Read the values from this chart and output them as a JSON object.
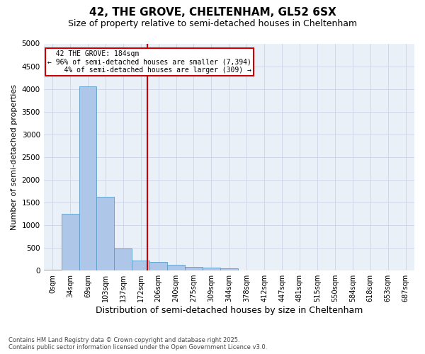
{
  "title1": "42, THE GROVE, CHELTENHAM, GL52 6SX",
  "title2": "Size of property relative to semi-detached houses in Cheltenham",
  "xlabel": "Distribution of semi-detached houses by size in Cheltenham",
  "ylabel": "Number of semi-detached properties",
  "bin_labels": [
    "0sqm",
    "34sqm",
    "69sqm",
    "103sqm",
    "137sqm",
    "172sqm",
    "206sqm",
    "240sqm",
    "275sqm",
    "309sqm",
    "344sqm",
    "378sqm",
    "412sqm",
    "447sqm",
    "481sqm",
    "515sqm",
    "550sqm",
    "584sqm",
    "618sqm",
    "653sqm",
    "687sqm"
  ],
  "bar_heights": [
    20,
    1250,
    4050,
    1620,
    480,
    220,
    190,
    130,
    80,
    70,
    50,
    5,
    0,
    0,
    0,
    0,
    0,
    0,
    0,
    0,
    0
  ],
  "bar_color": "#aec6e8",
  "bar_edge_color": "#5a9ec9",
  "marker_label": "42 THE GROVE: 184sqm",
  "pct_smaller": "96% of semi-detached houses are smaller (7,394)",
  "pct_larger": "4% of semi-detached houses are larger (309)",
  "ylim": [
    0,
    5000
  ],
  "yticks": [
    0,
    500,
    1000,
    1500,
    2000,
    2500,
    3000,
    3500,
    4000,
    4500,
    5000
  ],
  "annotation_box_color": "#cc0000",
  "grid_color": "#d0d8e8",
  "bg_color": "#eaf0f8",
  "footer": "Contains HM Land Registry data © Crown copyright and database right 2025.\nContains public sector information licensed under the Open Government Licence v3.0.",
  "title1_fontsize": 11,
  "title2_fontsize": 9,
  "xlabel_fontsize": 9,
  "ylabel_fontsize": 8
}
